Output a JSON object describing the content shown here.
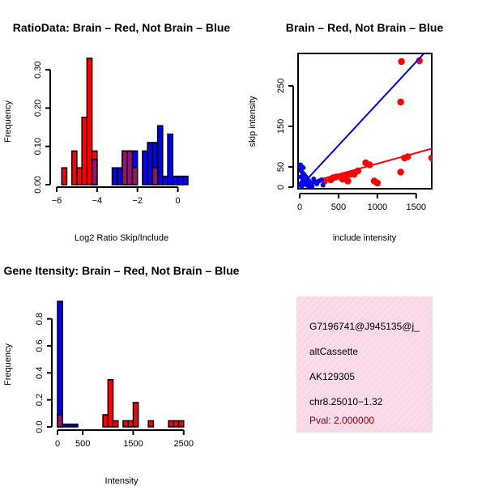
{
  "chart_data": [
    {
      "id": "ratio",
      "type": "bar",
      "title": "RatioData: Brain – Red, Not Brain – Blue",
      "xlabel": "Log2 Ratio Skip/Include",
      "ylabel": "Frequency",
      "xlim": [
        -6,
        0.5
      ],
      "ylim": [
        0,
        0.33
      ],
      "xticks": [
        -6,
        -4,
        -2,
        0
      ],
      "xtick_labels": [
        "−6",
        "−4",
        "−2",
        "0"
      ],
      "yticks": [
        0,
        0.1,
        0.2,
        0.3
      ],
      "ytick_labels": [
        "0.00",
        "0.10",
        "0.20",
        "0.30"
      ],
      "bin_width": 0.25,
      "series": [
        {
          "name": "Brain",
          "color": "#ff0000",
          "bins": [
            {
              "x": -5.75,
              "h": 0.044
            },
            {
              "x": -5.25,
              "h": 0.088
            },
            {
              "x": -5.0,
              "h": 0.044
            },
            {
              "x": -4.75,
              "h": 0.176
            },
            {
              "x": -4.5,
              "h": 0.33
            },
            {
              "x": -4.25,
              "h": 0.088
            },
            {
              "x": -2.75,
              "h": 0.088
            },
            {
              "x": -2.5,
              "h": 0.088
            },
            {
              "x": -2.25,
              "h": 0.044
            },
            {
              "x": -1.25,
              "h": 0.044
            }
          ]
        },
        {
          "name": "Not Brain",
          "color": "#0000ff",
          "bins": [
            {
              "x": -4.25,
              "h": 0.066
            },
            {
              "x": -3.25,
              "h": 0.044
            },
            {
              "x": -3.0,
              "h": 0.044
            },
            {
              "x": -2.75,
              "h": 0.088
            },
            {
              "x": -2.5,
              "h": 0.088
            },
            {
              "x": -2.25,
              "h": 0.088
            },
            {
              "x": -1.75,
              "h": 0.088
            },
            {
              "x": -1.5,
              "h": 0.11
            },
            {
              "x": -1.25,
              "h": 0.11
            },
            {
              "x": -1.0,
              "h": 0.154
            },
            {
              "x": -0.75,
              "h": 0.022
            },
            {
              "x": -0.5,
              "h": 0.132
            },
            {
              "x": -0.25,
              "h": 0.022
            },
            {
              "x": 0.0,
              "h": 0.022
            },
            {
              "x": 0.25,
              "h": 0.022
            }
          ]
        }
      ]
    },
    {
      "id": "scatter",
      "type": "scatter",
      "title": "Brain – Red, Not Brain – Blue",
      "xlabel": "include intensity",
      "ylabel": "skip intensity",
      "xlim": [
        0,
        1700
      ],
      "ylim": [
        0,
        330
      ],
      "xticks": [
        0,
        500,
        1000,
        1500
      ],
      "yticks": [
        0,
        50,
        150,
        250
      ],
      "series": [
        {
          "name": "Brain",
          "color": "#ff0000",
          "fit": [
            [
              0,
              5
            ],
            [
              1700,
              95
            ]
          ],
          "points": [
            [
              1310,
              310
            ],
            [
              1540,
              312
            ],
            [
              1300,
              210
            ],
            [
              1350,
              72
            ],
            [
              1390,
              75
            ],
            [
              1700,
              72
            ],
            [
              1300,
              37
            ],
            [
              850,
              60
            ],
            [
              900,
              55
            ],
            [
              750,
              40
            ],
            [
              650,
              32
            ],
            [
              600,
              30
            ],
            [
              550,
              20
            ],
            [
              620,
              15
            ],
            [
              470,
              25
            ],
            [
              430,
              23
            ],
            [
              400,
              18
            ],
            [
              320,
              15
            ],
            [
              960,
              15
            ],
            [
              1000,
              10
            ],
            [
              700,
              32
            ],
            [
              550,
              28
            ]
          ]
        },
        {
          "name": "Not Brain",
          "color": "#0000ff",
          "fit": [
            [
              0,
              0
            ],
            [
              1600,
              330
            ]
          ],
          "points": [
            [
              5,
              5
            ],
            [
              10,
              55
            ],
            [
              15,
              45
            ],
            [
              20,
              40
            ],
            [
              30,
              50
            ],
            [
              40,
              35
            ],
            [
              50,
              20
            ],
            [
              60,
              30
            ],
            [
              80,
              25
            ],
            [
              100,
              20
            ],
            [
              120,
              15
            ],
            [
              150,
              10
            ],
            [
              200,
              12
            ],
            [
              250,
              15
            ],
            [
              280,
              18
            ],
            [
              20,
              10
            ],
            [
              30,
              5
            ],
            [
              40,
              15
            ],
            [
              60,
              8
            ],
            [
              90,
              5
            ],
            [
              120,
              3
            ],
            [
              180,
              20
            ],
            [
              220,
              8
            ],
            [
              10,
              25
            ],
            [
              45,
              48
            ],
            [
              70,
              12
            ],
            [
              160,
              2
            ],
            [
              300,
              5
            ],
            [
              25,
              2
            ]
          ]
        }
      ]
    },
    {
      "id": "intensity",
      "type": "bar",
      "title": "Gene Itensity: Brain – Red, Not Brain – Blue",
      "xlabel": "Intensity",
      "ylabel": "Frequency",
      "xlim": [
        0,
        2600
      ],
      "ylim": [
        0,
        0.93
      ],
      "xticks": [
        0,
        500,
        1500,
        2500
      ],
      "yticks": [
        0,
        0.2,
        0.4,
        0.6,
        0.8
      ],
      "ytick_labels": [
        "0.0",
        "0.2",
        "0.4",
        "0.6",
        "0.8"
      ],
      "bin_width": 100,
      "series": [
        {
          "name": "Brain",
          "color": "#ff0000",
          "bins": [
            {
              "x": 0,
              "h": 0.09
            },
            {
              "x": 900,
              "h": 0.09
            },
            {
              "x": 1000,
              "h": 0.35
            },
            {
              "x": 1100,
              "h": 0.045
            },
            {
              "x": 1300,
              "h": 0.045
            },
            {
              "x": 1400,
              "h": 0.045
            },
            {
              "x": 1500,
              "h": 0.18
            },
            {
              "x": 1800,
              "h": 0.045
            },
            {
              "x": 2200,
              "h": 0.045
            },
            {
              "x": 2300,
              "h": 0.045
            },
            {
              "x": 2400,
              "h": 0.045
            }
          ]
        },
        {
          "name": "Not Brain",
          "color": "#0000ff",
          "bins": [
            {
              "x": 0,
              "h": 0.93
            },
            {
              "x": 100,
              "h": 0.02
            },
            {
              "x": 200,
              "h": 0.02
            },
            {
              "x": 300,
              "h": 0.02
            }
          ]
        }
      ]
    }
  ],
  "info": {
    "probe": "G7196741@J945135@j_",
    "event_type": "altCassette",
    "accession": "AK129305",
    "location": "chr8.25010−1.32",
    "pval": "Pval: 2.000000"
  }
}
